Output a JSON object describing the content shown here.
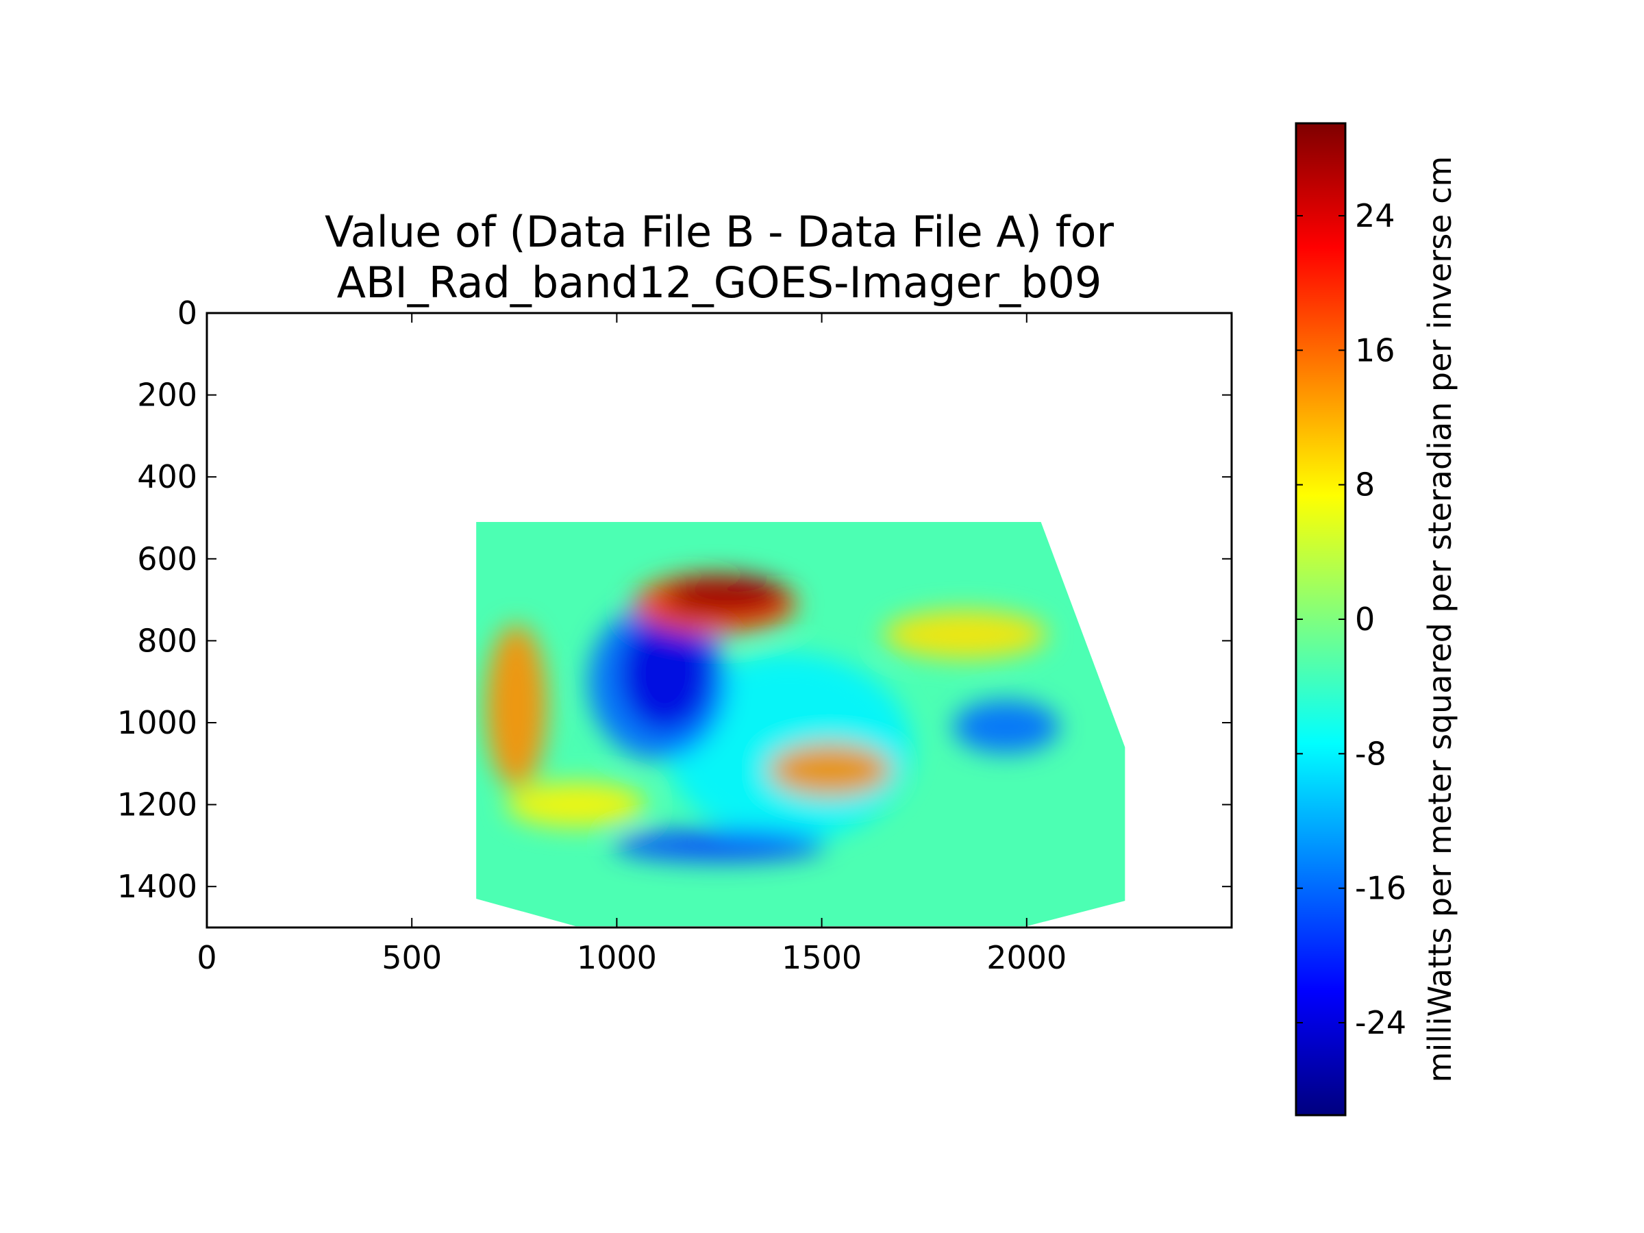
{
  "chart_data": {
    "type": "heatmap",
    "title_lines": [
      "Value of (Data File B - Data File A) for",
      "ABI_Rad_band12_GOES-Imager_b09"
    ],
    "xlim": [
      0,
      2500
    ],
    "ylim": [
      1500,
      0
    ],
    "x_ticks": [
      0,
      500,
      1000,
      1500,
      2000
    ],
    "x_tick_labels": [
      "0",
      "500",
      "1000",
      "1500",
      "2000"
    ],
    "y_ticks": [
      0,
      200,
      400,
      600,
      800,
      1000,
      1200,
      1400
    ],
    "y_tick_labels": [
      "0",
      "200",
      "400",
      "600",
      "800",
      "1000",
      "1200",
      "1400"
    ],
    "grid": false,
    "colormap": "jet",
    "colorbar": {
      "label": "milliWatts per meter squared per steradian per inverse cm",
      "range": [
        -29.5,
        29.5
      ],
      "ticks": [
        -24,
        -16,
        -8,
        0,
        8,
        16,
        24
      ],
      "tick_labels": [
        "-24",
        "-16",
        "-8",
        "0",
        "8",
        "16",
        "24"
      ],
      "colors": [
        "#00007f",
        "#0000ff",
        "#007fff",
        "#00ffff",
        "#7fff7f",
        "#ffff00",
        "#ff7f00",
        "#ff0000",
        "#7f0000"
      ]
    },
    "data_region_outline": [
      [
        657,
        510
      ],
      [
        2035,
        510
      ],
      [
        2240,
        1060
      ],
      [
        2240,
        1435
      ],
      [
        2000,
        1497
      ],
      [
        900,
        1497
      ],
      [
        657,
        1430
      ]
    ],
    "background_value": -3,
    "features": [
      {
        "name": "positive-anomaly-north",
        "x": 1265,
        "y": 690,
        "rx": 150,
        "ry": 50,
        "value": 28
      },
      {
        "name": "positive-anomaly-north-edge",
        "x": 1240,
        "y": 710,
        "rx": 200,
        "ry": 75,
        "value": 18
      },
      {
        "name": "negative-anomaly-west",
        "x": 1120,
        "y": 880,
        "rx": 110,
        "ry": 140,
        "value": -24
      },
      {
        "name": "negative-anomaly-west-edge",
        "x": 1100,
        "y": 900,
        "rx": 170,
        "ry": 190,
        "value": -16
      },
      {
        "name": "positive-anomaly-center",
        "x": 1520,
        "y": 1115,
        "rx": 150,
        "ry": 65,
        "value": 14
      },
      {
        "name": "positive-band-western-edge",
        "x": 755,
        "y": 960,
        "rx": 75,
        "ry": 200,
        "value": 14
      },
      {
        "name": "positive-band-southwest",
        "x": 900,
        "y": 1200,
        "rx": 170,
        "ry": 55,
        "value": 8
      },
      {
        "name": "negative-arc-south",
        "x": 1250,
        "y": 1300,
        "rx": 260,
        "ry": 40,
        "value": -18
      },
      {
        "name": "negative-patch-east",
        "x": 1950,
        "y": 1010,
        "rx": 130,
        "ry": 65,
        "value": -16
      },
      {
        "name": "positive-band-northeast",
        "x": 1850,
        "y": 785,
        "rx": 200,
        "ry": 60,
        "value": 9
      },
      {
        "name": "negative-ring-inner",
        "x": 1420,
        "y": 1060,
        "rx": 300,
        "ry": 230,
        "value": -8
      }
    ]
  }
}
